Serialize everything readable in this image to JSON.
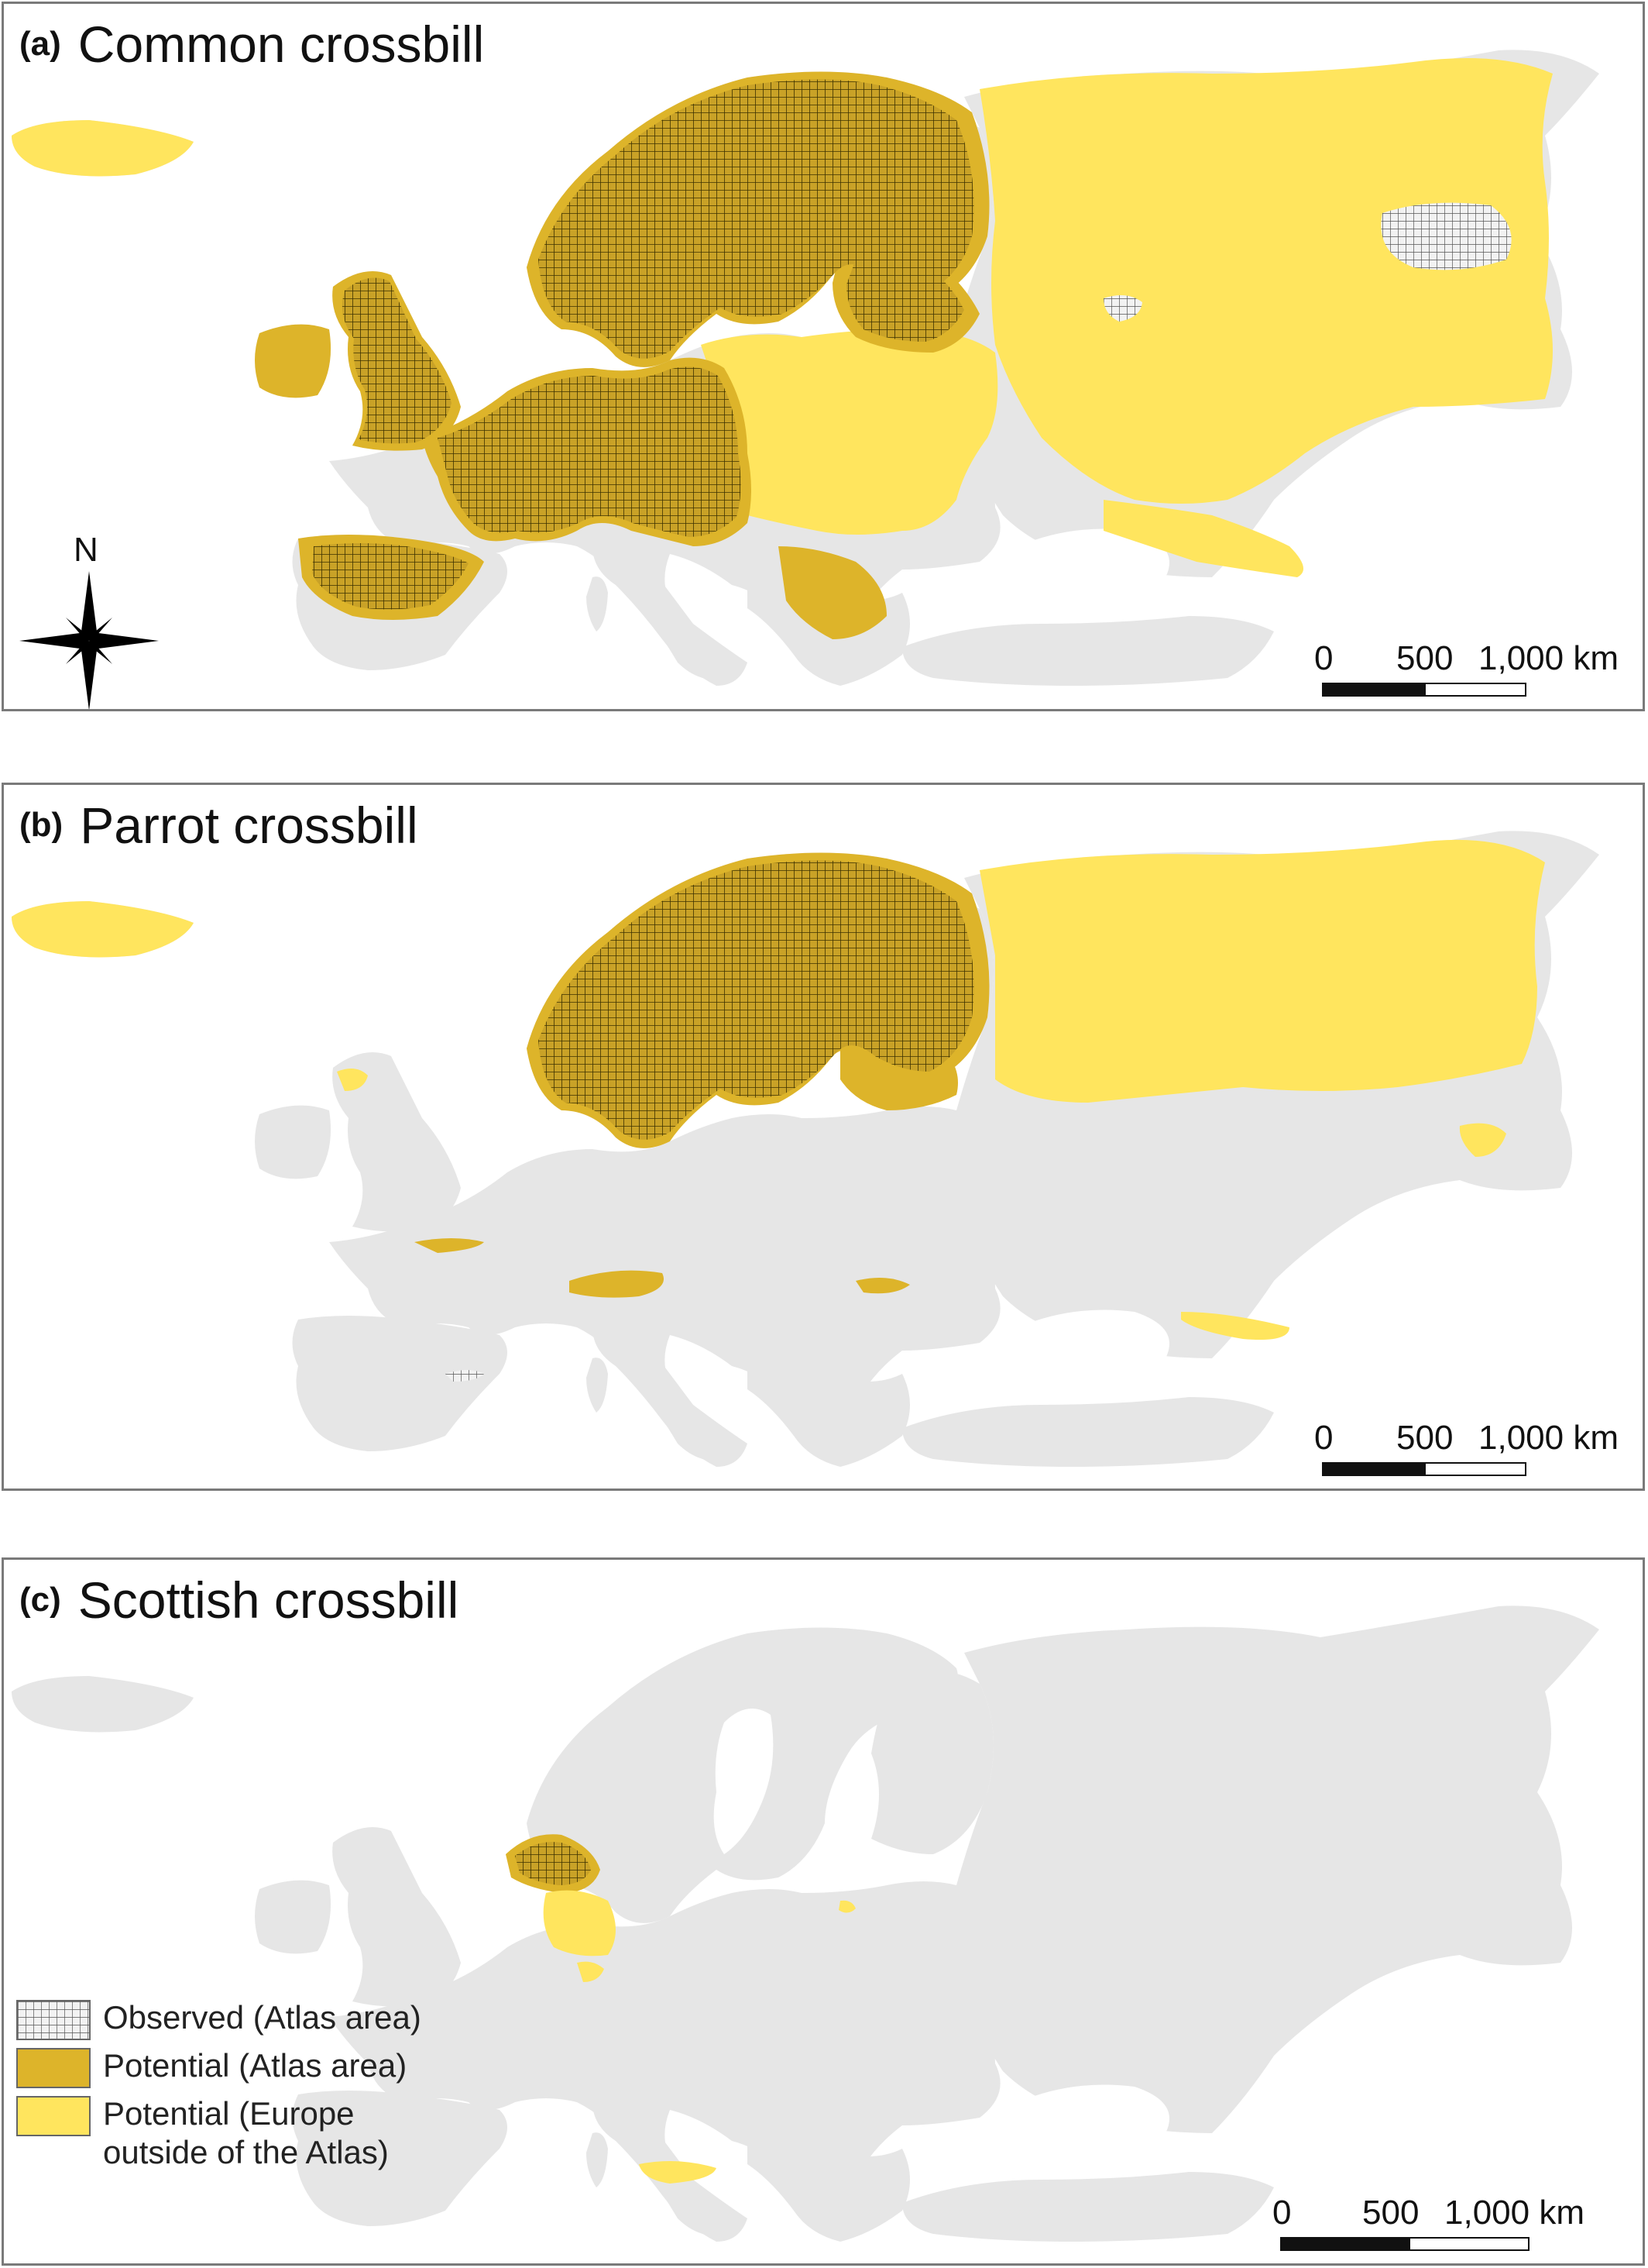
{
  "panels": [
    {
      "letter": "(a)",
      "name": "Common crossbill"
    },
    {
      "letter": "(b)",
      "name": "Parrot crossbill"
    },
    {
      "letter": "(c)",
      "name": "Scottish crossbill"
    }
  ],
  "scalebar": {
    "ticks": [
      "0",
      "500",
      "1,000 km"
    ]
  },
  "north_arrow": {
    "label": "N"
  },
  "legend": {
    "items": [
      {
        "label": "Observed (Atlas area)",
        "swatch": "hatched-grid"
      },
      {
        "label": "Potential (Atlas area)",
        "swatch": "dark-gold"
      },
      {
        "label_line1": "Potential (Europe",
        "label_line2": "outside of the Atlas)",
        "swatch": "light-yellow"
      }
    ]
  },
  "colors": {
    "land": "#e6e6e6",
    "potential_atlas": "#ddb42a",
    "potential_europe": "#ffe55e",
    "observed_grid": "#333333",
    "frame": "#7a7a7a"
  }
}
